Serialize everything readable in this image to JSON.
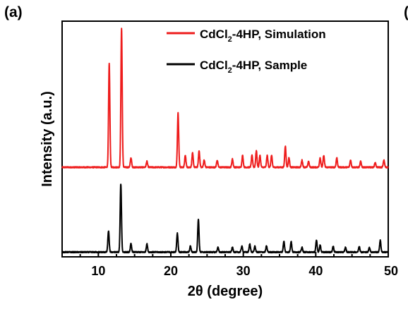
{
  "panel_label": "(a)",
  "clipped_label": "(",
  "chart_data": {
    "type": "line",
    "title": "",
    "xlabel": "2θ (degree)",
    "ylabel": "Intensity (a.u.)",
    "xlim": [
      5,
      50
    ],
    "xticks": [
      10,
      20,
      30,
      40,
      50
    ],
    "ylim": [
      0,
      100
    ],
    "yticks_shown": false,
    "grid": false,
    "legend_position": "top-right",
    "series": [
      {
        "name_main": "CdCl",
        "name_sub": "2",
        "name_rest": "-4HP, Simulation",
        "color": "#ee1c1c",
        "baseline": 38,
        "peaks": [
          {
            "x": 11.5,
            "h": 44
          },
          {
            "x": 13.2,
            "h": 59
          },
          {
            "x": 14.5,
            "h": 4
          },
          {
            "x": 16.7,
            "h": 2.5
          },
          {
            "x": 21.0,
            "h": 23
          },
          {
            "x": 22.0,
            "h": 5
          },
          {
            "x": 23.0,
            "h": 6
          },
          {
            "x": 23.9,
            "h": 7
          },
          {
            "x": 24.6,
            "h": 3
          },
          {
            "x": 26.4,
            "h": 3
          },
          {
            "x": 28.5,
            "h": 3.5
          },
          {
            "x": 29.9,
            "h": 5
          },
          {
            "x": 31.2,
            "h": 5
          },
          {
            "x": 31.8,
            "h": 7
          },
          {
            "x": 32.3,
            "h": 5
          },
          {
            "x": 33.3,
            "h": 5
          },
          {
            "x": 33.9,
            "h": 5
          },
          {
            "x": 35.8,
            "h": 9
          },
          {
            "x": 36.3,
            "h": 4
          },
          {
            "x": 38.1,
            "h": 3
          },
          {
            "x": 39.0,
            "h": 2.5
          },
          {
            "x": 40.6,
            "h": 4
          },
          {
            "x": 41.1,
            "h": 5
          },
          {
            "x": 42.9,
            "h": 4
          },
          {
            "x": 44.8,
            "h": 3
          },
          {
            "x": 46.2,
            "h": 2.5
          },
          {
            "x": 48.2,
            "h": 2
          },
          {
            "x": 49.4,
            "h": 3
          }
        ]
      },
      {
        "name_main": "CdCl",
        "name_sub": "2",
        "name_rest": "-4HP, Sample",
        "color": "#000000",
        "baseline": 2,
        "peaks": [
          {
            "x": 11.4,
            "h": 9
          },
          {
            "x": 13.1,
            "h": 29
          },
          {
            "x": 14.5,
            "h": 3.5
          },
          {
            "x": 16.7,
            "h": 3.5
          },
          {
            "x": 20.9,
            "h": 8
          },
          {
            "x": 22.7,
            "h": 2.5
          },
          {
            "x": 23.8,
            "h": 14
          },
          {
            "x": 26.5,
            "h": 2
          },
          {
            "x": 28.5,
            "h": 2
          },
          {
            "x": 29.8,
            "h": 2.5
          },
          {
            "x": 30.9,
            "h": 3.5
          },
          {
            "x": 31.6,
            "h": 2.5
          },
          {
            "x": 33.2,
            "h": 2.5
          },
          {
            "x": 35.6,
            "h": 4.5
          },
          {
            "x": 36.6,
            "h": 4.5
          },
          {
            "x": 38.1,
            "h": 2
          },
          {
            "x": 40.1,
            "h": 5
          },
          {
            "x": 40.6,
            "h": 3
          },
          {
            "x": 42.4,
            "h": 2.5
          },
          {
            "x": 44.1,
            "h": 2
          },
          {
            "x": 46.0,
            "h": 2.5
          },
          {
            "x": 47.4,
            "h": 2
          },
          {
            "x": 48.9,
            "h": 5
          }
        ]
      }
    ]
  }
}
